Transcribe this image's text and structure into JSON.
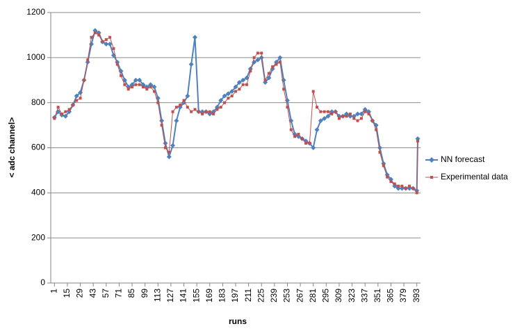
{
  "chart_data": {
    "type": "line",
    "x_label": "runs",
    "y_label": "< adc channel>",
    "x": [
      1,
      5,
      9,
      13,
      17,
      21,
      25,
      29,
      33,
      37,
      41,
      45,
      49,
      53,
      57,
      61,
      65,
      69,
      73,
      77,
      81,
      85,
      89,
      93,
      97,
      101,
      105,
      109,
      113,
      117,
      121,
      125,
      129,
      133,
      137,
      141,
      145,
      149,
      153,
      157,
      161,
      165,
      169,
      173,
      177,
      181,
      185,
      189,
      193,
      197,
      201,
      205,
      209,
      213,
      217,
      221,
      225,
      229,
      233,
      237,
      241,
      245,
      249,
      253,
      257,
      261,
      265,
      269,
      273,
      277,
      281,
      285,
      289,
      293,
      297,
      301,
      305,
      309,
      313,
      317,
      321,
      325,
      329,
      333,
      337,
      341,
      345,
      349,
      353,
      357,
      361,
      365,
      369,
      373,
      377,
      381,
      385,
      389,
      393,
      394
    ],
    "series": [
      {
        "name": "NN forecast",
        "color": "#4f81bd",
        "marker": "diamond",
        "values": [
          735,
          760,
          745,
          740,
          760,
          790,
          830,
          845,
          900,
          980,
          1060,
          1120,
          1110,
          1070,
          1060,
          1060,
          1010,
          980,
          940,
          900,
          870,
          880,
          900,
          900,
          880,
          870,
          880,
          870,
          820,
          720,
          620,
          560,
          610,
          720,
          780,
          800,
          830,
          970,
          1090,
          760,
          760,
          760,
          750,
          760,
          780,
          810,
          830,
          840,
          850,
          870,
          890,
          900,
          910,
          950,
          980,
          990,
          1000,
          890,
          910,
          950,
          980,
          1000,
          900,
          810,
          720,
          660,
          650,
          640,
          630,
          620,
          600,
          680,
          720,
          730,
          740,
          760,
          760,
          740,
          740,
          750,
          740,
          740,
          750,
          750,
          770,
          760,
          720,
          700,
          600,
          530,
          480,
          460,
          430,
          420,
          420,
          420,
          420,
          420,
          410,
          640
        ]
      },
      {
        "name": "Experimental data",
        "color": "#c0504d",
        "marker": "square",
        "values": [
          730,
          780,
          750,
          760,
          770,
          790,
          810,
          820,
          900,
          990,
          1090,
          1110,
          1100,
          1070,
          1080,
          1090,
          1040,
          970,
          920,
          880,
          860,
          870,
          880,
          880,
          870,
          860,
          870,
          850,
          800,
          700,
          600,
          580,
          760,
          780,
          790,
          810,
          780,
          760,
          770,
          760,
          750,
          760,
          760,
          750,
          770,
          780,
          800,
          820,
          830,
          850,
          860,
          880,
          880,
          940,
          1000,
          1020,
          1020,
          900,
          930,
          960,
          970,
          980,
          860,
          780,
          680,
          650,
          660,
          640,
          620,
          620,
          850,
          780,
          760,
          760,
          760,
          750,
          760,
          730,
          740,
          740,
          750,
          730,
          720,
          730,
          760,
          750,
          720,
          680,
          580,
          520,
          470,
          450,
          440,
          430,
          430,
          420,
          430,
          420,
          400,
          630
        ]
      }
    ],
    "xlim": [
      -3,
      397
    ],
    "xticks": [
      1,
      15,
      29,
      43,
      57,
      71,
      85,
      99,
      113,
      127,
      141,
      155,
      169,
      183,
      197,
      211,
      225,
      239,
      253,
      267,
      281,
      295,
      309,
      323,
      337,
      351,
      365,
      379,
      393
    ],
    "ylim": [
      0,
      1200
    ],
    "yticks": [
      0,
      200,
      400,
      600,
      800,
      1000,
      1200
    ],
    "grid": true,
    "legend": "right"
  }
}
